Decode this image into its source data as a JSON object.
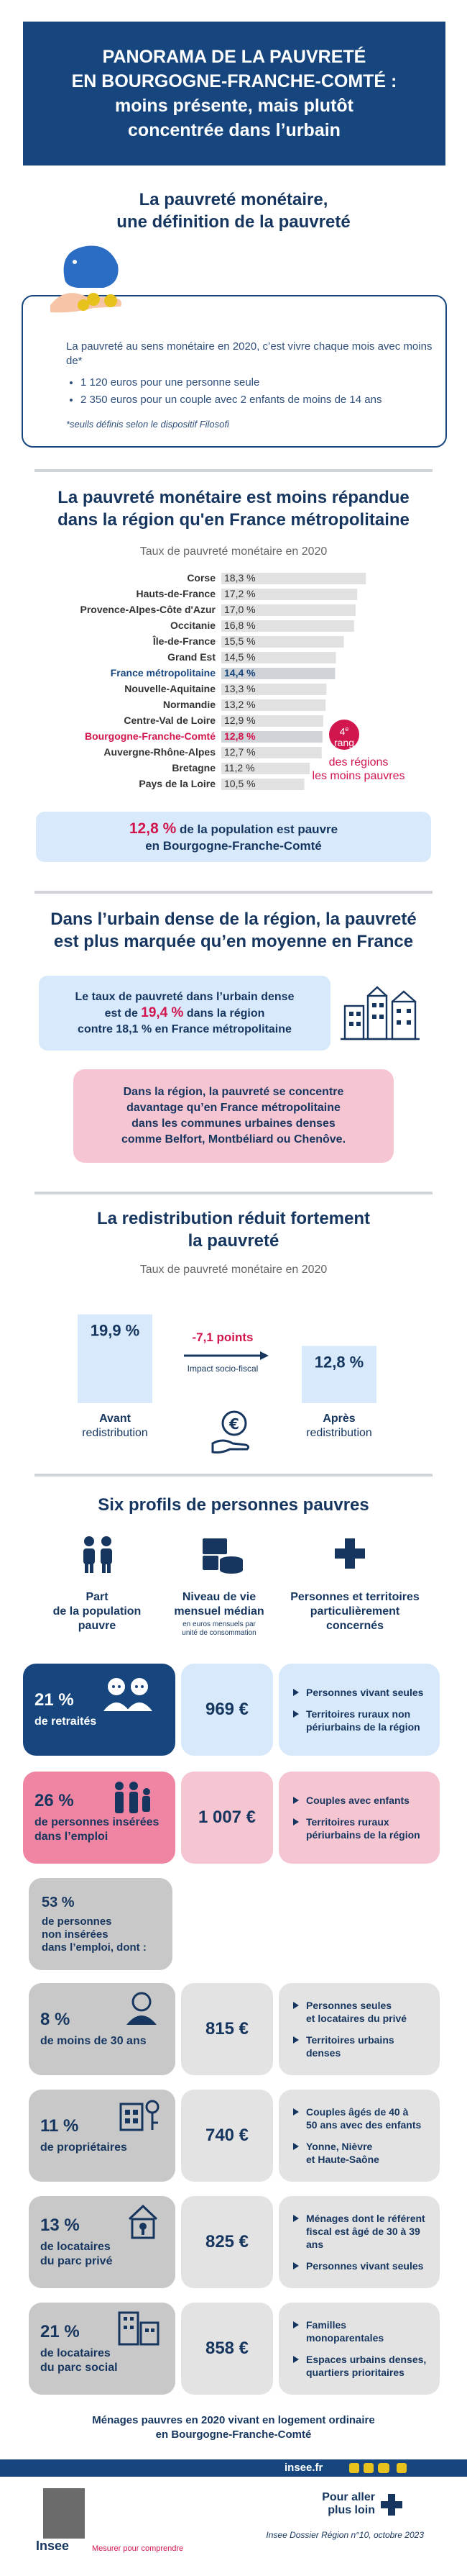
{
  "header": {
    "title": "PANORAMA DE LA PAUVRETÉ\nEN BOURGOGNE-FRANCHE-COMTÉ :\nmoins présente, mais plutôt\nconcentrée dans l’urbain"
  },
  "definition": {
    "title": "La pauvreté monétaire,\nune définition de la pauvreté",
    "text": "La pauvreté au sens monétaire en 2020, c’est vivre chaque mois avec moins de*",
    "items": [
      "1 120 euros pour une personne seule",
      "2 350 euros pour un couple avec 2 enfants de moins de 14 ans"
    ],
    "footnote": "*seuils définis selon le dispositif Filosofi"
  },
  "chart_section": {
    "title": "La pauvreté monétaire est moins répandue\ndans la région qu'en France métropolitaine",
    "badge_rank_top": "4",
    "badge_rank_sup": "e",
    "badge_rank_bottom": "rang",
    "badge_note": "des régions\nles moins pauvres",
    "summary_value": "12,8 %",
    "summary_text": "de la population est pauvre\nen Bourgogne-Franche-Comté"
  },
  "chart_data": [
    {
      "type": "bar",
      "title": "Taux de pauvreté monétaire en 2020",
      "categories": [
        "Corse",
        "Hauts-de-France",
        "Provence-Alpes-Côte d'Azur",
        "Occitanie",
        "Île-de-France",
        "Grand Est",
        "France métropolitaine",
        "Nouvelle-Aquitaine",
        "Normandie",
        "Centre-Val de Loire",
        "Bourgogne-Franche-Comté",
        "Auvergne-Rhône-Alpes",
        "Bretagne",
        "Pays de la Loire"
      ],
      "values": [
        18.3,
        17.2,
        17.0,
        16.8,
        15.5,
        14.5,
        14.4,
        13.3,
        13.2,
        12.9,
        12.8,
        12.7,
        11.2,
        10.5
      ],
      "value_labels": [
        "18,3 %",
        "17,2 %",
        "17,0 %",
        "16,8 %",
        "15,5 %",
        "14,5 %",
        "14,4 %",
        "13,3 %",
        "13,2 %",
        "12,9 %",
        "12,8 %",
        "12,7 %",
        "11,2 %",
        "10,5 %"
      ],
      "highlight": {
        "France métropolitaine": "#17467e",
        "Bourgogne-Franche-Comté": "#d1154d"
      },
      "bar_color": "#e1e1e1",
      "xlim": [
        0,
        20
      ]
    },
    {
      "type": "bar",
      "title": "Taux de pauvreté monétaire en 2020",
      "categories": [
        "Avant\nredistribution",
        "Après\nredistribution"
      ],
      "values": [
        19.9,
        12.8
      ],
      "value_labels": [
        "19,9 %",
        "12,8 %"
      ],
      "annotation": "-7,1 points",
      "annotation_sub": "Impact socio-fiscal"
    }
  ],
  "urban": {
    "title": "Dans l’urbain dense de la région, la pauvreté\nest plus marquée qu’en moyenne en France",
    "box_pre": "Le taux de pauvreté dans l’urbain dense\nest de ",
    "box_value": "19,4 %",
    "box_post": " dans la région\ncontre 18,1 % en France métropolitaine",
    "pink_text": "Dans la région, la pauvreté se concentre\ndavantage qu’en France métropolitaine\ndans les communes urbaines denses\ncomme Belfort, Montbéliard ou Chenôve."
  },
  "redistribution": {
    "title": "La redistribution réduit fortement\nla pauvreté",
    "before_line1": "Avant",
    "before_line2": "redistribution",
    "after_line1": "Après",
    "after_line2": "redistribution"
  },
  "profiles": {
    "title": "Six profils de personnes pauvres",
    "col1": "Part\nde la population\npauvre",
    "col2": "Niveau de vie\nmensuel médian",
    "col2_sub": "en euros mensuels par\nunité de consommation",
    "col3": "Personnes et territoires\nparticulièrement\nconcernés",
    "rows": [
      {
        "pct": "21 %",
        "label": "de retraités",
        "value": "969 €",
        "items": [
          "Personnes vivant seules",
          "Territoires ruraux non\npériurbains de la région"
        ]
      },
      {
        "pct": "26 %",
        "label": "de personnes insérées\ndans l’emploi",
        "value": "1 007 €",
        "items": [
          "Couples avec enfants",
          "Territoires ruraux\npériurbains de la région"
        ]
      },
      {
        "pct": "8 %",
        "label": "de moins de 30 ans",
        "value": "815 €",
        "items": [
          "Personnes seules\net locataires du privé",
          "Territoires urbains\ndenses"
        ]
      },
      {
        "pct": "11 %",
        "label": "de propriétaires",
        "value": "740 €",
        "items": [
          "Couples âgés de 40 à\n50 ans avec des enfants",
          "Yonne, Nièvre\net Haute-Saône"
        ]
      },
      {
        "pct": "13 %",
        "label": "de locataires\ndu parc privé",
        "value": "825 €",
        "items": [
          "Ménages dont le référent\nfiscal est âgé de 30 à 39 ans",
          "Personnes vivant seules"
        ]
      },
      {
        "pct": "21 %",
        "label": "de locataires\ndu parc social",
        "value": "858 €",
        "items": [
          "Familles\nmonoparentales",
          "Espaces urbains denses,\nquartiers prioritaires"
        ]
      }
    ],
    "non_inserted_pct": "53 %",
    "non_inserted_label": "de personnes\nnon insérées\ndans l’emploi, dont :",
    "footer_note": "Ménages pauvres en 2020 vivant en logement ordinaire\nen Bourgogne-Franche-Comté"
  },
  "footer": {
    "site": "insee.fr",
    "brand": "Insee",
    "tagline": "Mesurer pour comprendre",
    "more": "Pour aller\nplus loin",
    "ref": "Insee Dossier Région n°10, octobre 2023"
  },
  "colors": {
    "navy": "#17467e",
    "pink": "#d1154d",
    "lightblue": "#d7e9fb",
    "pinkbg": "#f6c5d2",
    "grey": "#c8c8c8"
  }
}
